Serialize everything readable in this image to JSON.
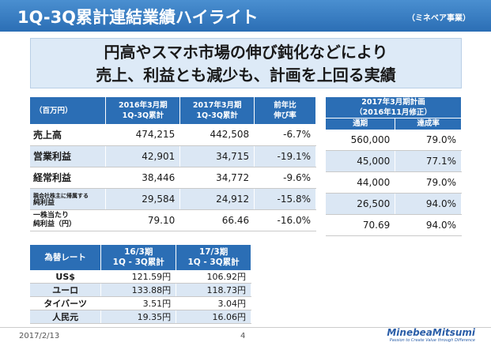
{
  "title": "1Q-3Q累計連結業績ハイライト",
  "subtitle": "（ミネベア事業）",
  "headline": {
    "line1": "円高やスマホ市場の伸び鈍化などにより",
    "line2": "売上、利益とも減少も、計画を上回る実績"
  },
  "main_table": {
    "unit_header": "（百万円）",
    "col1_top": "2016年3月期",
    "col1_bottom": "1Q-3Q累計",
    "col2_top": "2017年3月期",
    "col2_bottom": "1Q-3Q累計",
    "col3_top": "前年比",
    "col3_bottom": "伸び率",
    "rows": [
      {
        "label": "売上高",
        "v1": "474,215",
        "v2": "442,508",
        "yoy": "-6.7%"
      },
      {
        "label": "営業利益",
        "v1": "42,901",
        "v2": "34,715",
        "yoy": "-19.1%"
      },
      {
        "label": "経常利益",
        "v1": "38,446",
        "v2": "34,772",
        "yoy": "-9.6%"
      },
      {
        "label_top": "親会社株主に帰属する",
        "label_bottom": "純利益",
        "v1": "29,584",
        "v2": "24,912",
        "yoy": "-15.8%"
      },
      {
        "label_top": "一株当たり",
        "label_bottom": "純利益（円）",
        "v1": "79.10",
        "v2": "66.46",
        "yoy": "-16.0%"
      }
    ]
  },
  "plan_table": {
    "header_line1": "2017年3月期計画",
    "header_line2": "（2016年11月修正）",
    "col_plan": "通期",
    "col_rate": "達成率",
    "rows": [
      {
        "plan": "560,000",
        "rate": "79.0%"
      },
      {
        "plan": "45,000",
        "rate": "77.1%"
      },
      {
        "plan": "44,000",
        "rate": "79.0%"
      },
      {
        "plan": "26,500",
        "rate": "94.0%"
      },
      {
        "plan": "70.69",
        "rate": "94.0%"
      }
    ]
  },
  "fx_table": {
    "header": "為替レート",
    "col1_top": "16/3期",
    "col1_bottom": "1Q - 3Q累計",
    "col2_top": "17/3期",
    "col2_bottom": "1Q - 3Q累計",
    "rows": [
      {
        "currency": "US$",
        "v1": "121.59円",
        "v2": "106.92円"
      },
      {
        "currency": "ユーロ",
        "v1": "133.88円",
        "v2": "118.73円"
      },
      {
        "currency": "タイバーツ",
        "v1": "3.51円",
        "v2": "3.04円"
      },
      {
        "currency": "人民元",
        "v1": "19.35円",
        "v2": "16.06円"
      }
    ]
  },
  "footer": {
    "date": "2017/2/13",
    "page": "4",
    "logo": "MinebeaMitsumi",
    "tagline": "Passion to Create Value through Difference"
  }
}
